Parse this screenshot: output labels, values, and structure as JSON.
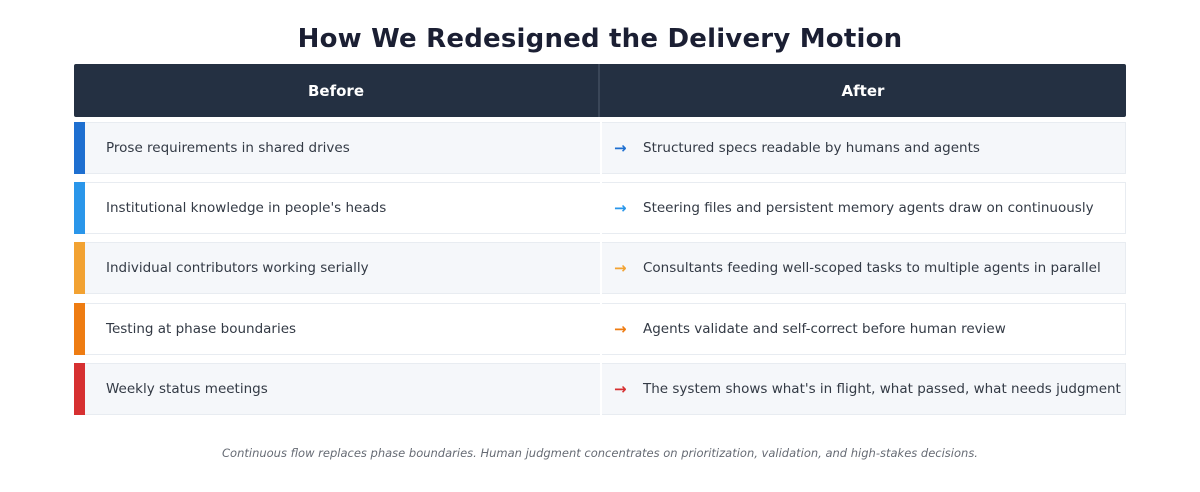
{
  "title": "How We Redesigned the Delivery Motion",
  "header": {
    "before": "Before",
    "after": "After"
  },
  "rows": [
    {
      "before": "Prose requirements in shared drives",
      "arrow": "→",
      "after": "Structured specs readable by humans and agents",
      "accent_color": "#1e6fd0",
      "arrow_color": "#1e6fd0"
    },
    {
      "before": "Institutional knowledge in people's heads",
      "arrow": "→",
      "after": "Steering files and persistent memory agents draw on continuously",
      "accent_color": "#2a96ea",
      "arrow_color": "#2a96ea"
    },
    {
      "before": "Individual contributors working serially",
      "arrow": "→",
      "after": "Consultants feeding well-scoped tasks to multiple agents in parallel",
      "accent_color": "#f2a232",
      "arrow_color": "#f2a232"
    },
    {
      "before": "Testing at phase boundaries",
      "arrow": "→",
      "after": "Agents validate and self-correct before human review",
      "accent_color": "#ee7c12",
      "arrow_color": "#ee7c12"
    },
    {
      "before": "Weekly status meetings",
      "arrow": "→",
      "after": "The system shows what's in flight, what passed, what needs judgment",
      "accent_color": "#d63031",
      "arrow_color": "#d63031"
    }
  ],
  "footnote": "Continuous flow replaces phase boundaries. Human judgment concentrates on prioritization, validation, and high-stakes decisions."
}
